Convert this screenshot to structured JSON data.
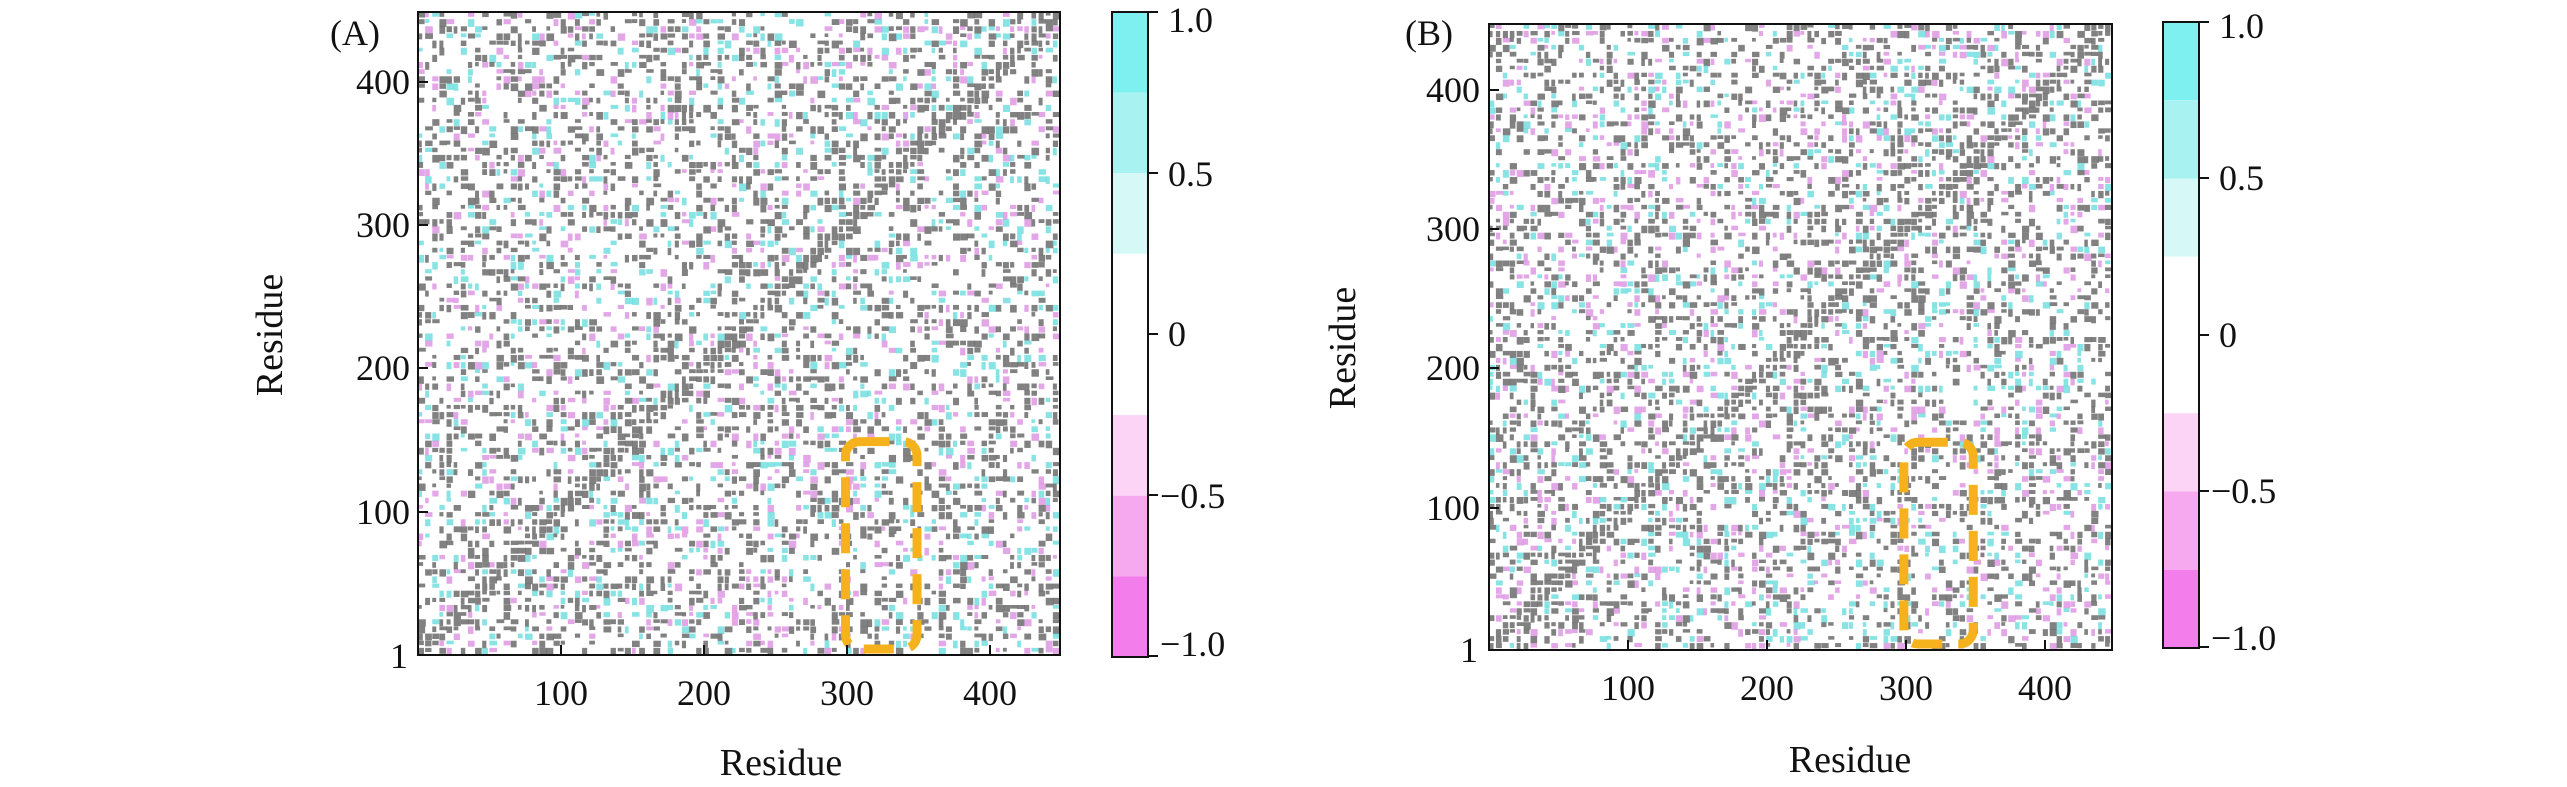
{
  "chart_data": [
    {
      "type": "heatmap",
      "panel_label": "(A)",
      "title": "",
      "xlabel": "Residue",
      "ylabel": "Residue",
      "x_ticks": [
        "100",
        "200",
        "300",
        "400"
      ],
      "y_ticks": [
        "1",
        "100",
        "200",
        "300",
        "400"
      ],
      "xlim": [
        1,
        450
      ],
      "ylim": [
        1,
        450
      ],
      "colorbar": {
        "range": [
          -1.0,
          1.0
        ],
        "tick_labels": [
          "1.0",
          "0.5",
          "0",
          "−0.5",
          "−1.0"
        ],
        "bands": [
          {
            "from": 0.75,
            "to": 1.0,
            "color": "#7ff0f0"
          },
          {
            "from": 0.5,
            "to": 0.75,
            "color": "#a8f3f1"
          },
          {
            "from": 0.25,
            "to": 0.5,
            "color": "#d6f9f8"
          },
          {
            "from": -0.25,
            "to": 0.25,
            "color": "#ffffff"
          },
          {
            "from": -0.5,
            "to": -0.25,
            "color": "#fbd4f6"
          },
          {
            "from": -0.75,
            "to": -0.5,
            "color": "#f7a9f0"
          },
          {
            "from": -1.0,
            "to": -0.75,
            "color": "#f27deb"
          }
        ]
      },
      "highlight_region": {
        "x_range": [
          300,
          350
        ],
        "y_range": [
          1,
          150
        ]
      },
      "seed": 17
    },
    {
      "type": "heatmap",
      "panel_label": "(B)",
      "title": "",
      "xlabel": "Residue",
      "ylabel": "Residue",
      "x_ticks": [
        "100",
        "200",
        "300",
        "400"
      ],
      "y_ticks": [
        "1",
        "100",
        "200",
        "300",
        "400"
      ],
      "xlim": [
        1,
        450
      ],
      "ylim": [
        1,
        450
      ],
      "colorbar": {
        "range": [
          -1.0,
          1.0
        ],
        "tick_labels": [
          "1.0",
          "0.5",
          "0",
          "−0.5",
          "−1.0"
        ],
        "bands": [
          {
            "from": 0.75,
            "to": 1.0,
            "color": "#7ff0f0"
          },
          {
            "from": 0.5,
            "to": 0.75,
            "color": "#a8f3f1"
          },
          {
            "from": 0.25,
            "to": 0.5,
            "color": "#d6f9f8"
          },
          {
            "from": -0.25,
            "to": 0.25,
            "color": "#ffffff"
          },
          {
            "from": -0.5,
            "to": -0.25,
            "color": "#fbd4f6"
          },
          {
            "from": -0.75,
            "to": -0.5,
            "color": "#f7a9f0"
          },
          {
            "from": -1.0,
            "to": -0.75,
            "color": "#f27deb"
          }
        ]
      },
      "highlight_region": {
        "x_range": [
          300,
          350
        ],
        "y_range": [
          1,
          150
        ]
      },
      "seed": 91
    }
  ],
  "colors": {
    "grid_noise": "#6b6b6b",
    "positive": "#5fd9db",
    "negative": "#d98ae0",
    "highlight": "#f5b21c",
    "axis": "#111111"
  }
}
